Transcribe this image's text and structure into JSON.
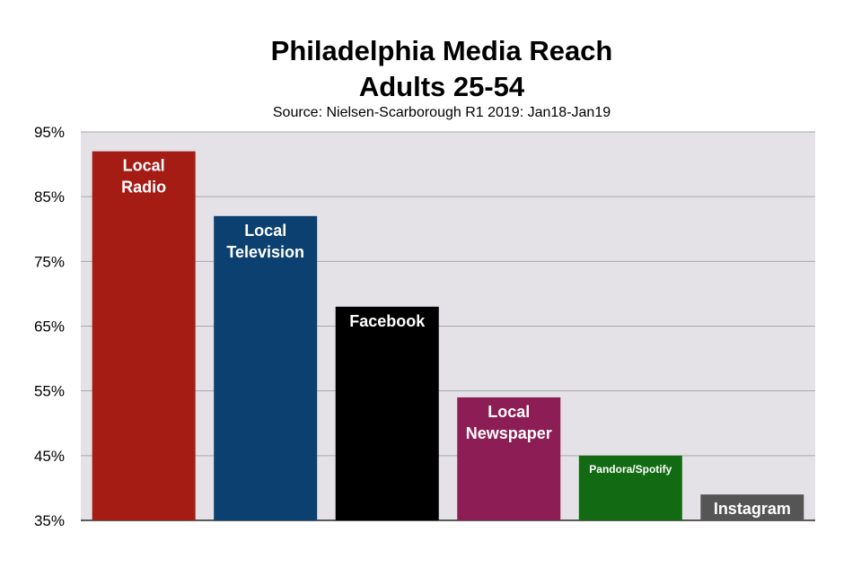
{
  "chart_data": {
    "type": "bar",
    "title": "Philadelphia Media Reach",
    "title_line2": "Adults 25-54",
    "subtitle": "Source: Nielsen-Scarborough R1 2019: Jan18-Jan19",
    "categories": [
      "Local Radio",
      "Local Television",
      "Facebook",
      "Local Newspaper",
      "Pandora/Spotify",
      "Instagram"
    ],
    "label_lines": [
      [
        "Local",
        "Radio"
      ],
      [
        "Local",
        "Television"
      ],
      [
        "Facebook"
      ],
      [
        "Local",
        "Newspaper"
      ],
      [
        "Pandora/Spotify"
      ],
      [
        "Instagram"
      ]
    ],
    "values": [
      92,
      82,
      68,
      54,
      45,
      39
    ],
    "colors": [
      "#a51c15",
      "#0b4070",
      "#000000",
      "#8c1e55",
      "#126b13",
      "#555555"
    ],
    "yticks": [
      35,
      45,
      55,
      65,
      75,
      85,
      95
    ],
    "ytick_labels": [
      "35%",
      "45%",
      "55%",
      "65%",
      "75%",
      "85%",
      "95%"
    ],
    "ylim": [
      35,
      95
    ],
    "grid": true,
    "plot_background": "#e4e2e7",
    "xlabel": "",
    "ylabel": ""
  }
}
